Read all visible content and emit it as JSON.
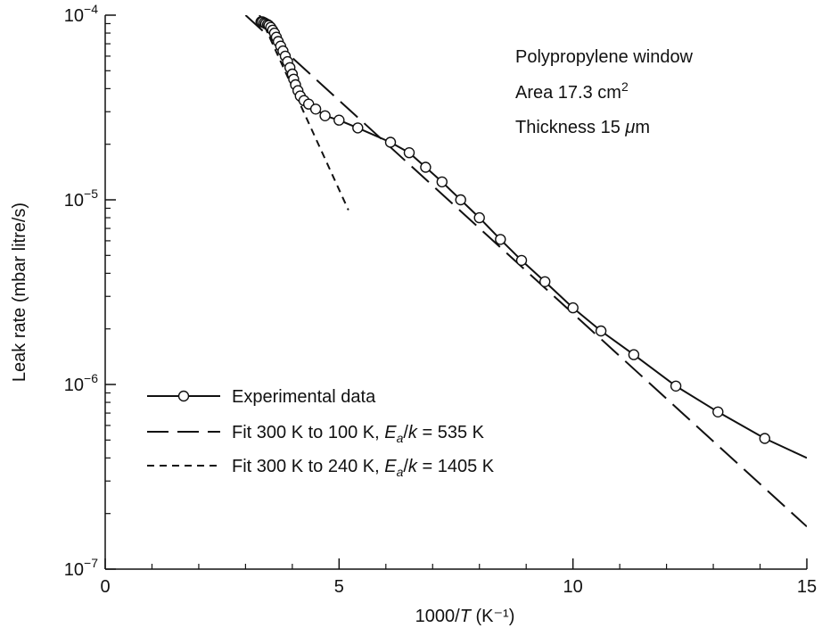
{
  "chart_data": {
    "type": "line",
    "title": "",
    "xlabel": {
      "prefix": "1000/",
      "italic": "T",
      "unit": " (K⁻¹)"
    },
    "ylabel": "Leak rate (mbar litre/s)",
    "xlim": [
      0,
      15
    ],
    "ylim": [
      1e-07,
      0.0001
    ],
    "yscale": "log",
    "grid": false,
    "x_ticks": [
      0,
      5,
      10,
      15
    ],
    "x_ticks_minor": [
      1,
      2,
      3,
      4,
      6,
      7,
      8,
      9,
      11,
      12,
      13,
      14
    ],
    "y_ticks": [
      {
        "value": 1e-07,
        "base": "10",
        "exp": "−7"
      },
      {
        "value": 1e-06,
        "base": "10",
        "exp": "−6"
      },
      {
        "value": 1e-05,
        "base": "10",
        "exp": "−5"
      },
      {
        "value": 0.0001,
        "base": "10",
        "exp": "−4"
      }
    ],
    "annotations": [
      {
        "text": "Polypropylene window"
      },
      {
        "text": "Area 17.3 cm",
        "sup": "2"
      },
      {
        "text": "Thickness 15 ",
        "italic": "μ",
        "after": "m"
      }
    ],
    "series": [
      {
        "name": "Experimental data",
        "style": "solid-markers",
        "x": [
          3.33,
          3.36,
          3.4,
          3.43,
          3.47,
          3.5,
          3.54,
          3.58,
          3.62,
          3.66,
          3.7,
          3.75,
          3.8,
          3.85,
          3.9,
          3.95,
          4.0,
          4.03,
          4.07,
          4.12,
          4.17,
          4.25,
          4.35,
          4.5,
          4.7,
          5.0,
          5.4,
          6.1,
          6.5,
          6.85,
          7.2,
          7.6,
          8.0,
          8.45,
          8.9,
          9.4,
          10.0,
          10.6,
          11.3,
          12.2,
          13.1,
          14.1,
          15.0
        ],
        "y": [
          9.2e-05,
          9.2e-05,
          9.1e-05,
          9e-05,
          8.9e-05,
          8.8e-05,
          8.6e-05,
          8.3e-05,
          8e-05,
          7.6e-05,
          7.2e-05,
          6.8e-05,
          6.4e-05,
          6e-05,
          5.6e-05,
          5.2e-05,
          4.8e-05,
          4.5e-05,
          4.2e-05,
          3.9e-05,
          3.65e-05,
          3.45e-05,
          3.3e-05,
          3.1e-05,
          2.85e-05,
          2.7e-05,
          2.45e-05,
          2.05e-05,
          1.8e-05,
          1.5e-05,
          1.25e-05,
          1e-05,
          8e-06,
          6.1e-06,
          4.7e-06,
          3.6e-06,
          2.6e-06,
          1.95e-06,
          1.45e-06,
          9.8e-07,
          7.1e-07,
          5.1e-07,
          4e-07
        ],
        "marker_indices": [
          0,
          1,
          2,
          3,
          4,
          5,
          6,
          7,
          8,
          9,
          10,
          11,
          12,
          13,
          14,
          15,
          16,
          17,
          18,
          19,
          20,
          21,
          22,
          23,
          24,
          25,
          26,
          27,
          28,
          29,
          30,
          31,
          32,
          33,
          34,
          35,
          36,
          37,
          38,
          39,
          40,
          41
        ]
      },
      {
        "name": "Fit 300 K to 100 K, ",
        "name_italic_1": "E",
        "name_sub": "a",
        "name_slash": "/",
        "name_italic_2": "k",
        "name_tail": " = 535 K",
        "style": "long-dash",
        "x": [
          3.0,
          15.0
        ],
        "y": [
          0.0001,
          1.7e-07
        ]
      },
      {
        "name": "Fit 300 K to 240 K, ",
        "name_italic_1": "E",
        "name_sub": "a",
        "name_slash": "/",
        "name_italic_2": "k",
        "name_tail": " = 1405 K",
        "style": "short-dash",
        "x": [
          3.3,
          5.2
        ],
        "y": [
          0.0001,
          8.8e-06
        ]
      }
    ],
    "legend_position": "bottom-left"
  }
}
